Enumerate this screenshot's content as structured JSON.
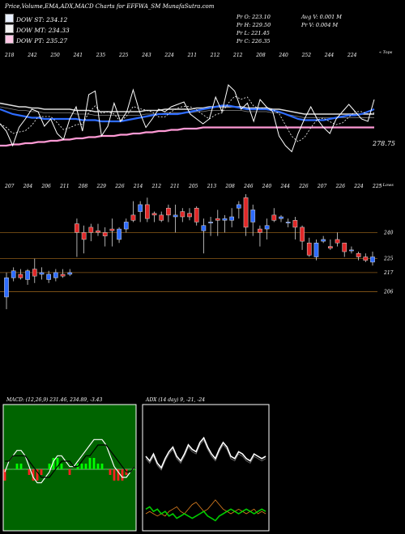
{
  "header": {
    "title": "Price,Volume,EMA,ADX,MACD Charts for EFFWA_SM MunafaSutra.com"
  },
  "legend": [
    {
      "label": "DOW ST: 234.12",
      "color": "#e8f0ff"
    },
    {
      "label": "DOW MT: 234.33",
      "color": "#f2f2f2"
    },
    {
      "label": "DOW PT: 235.27",
      "color": "#ffc8e6"
    }
  ],
  "stats": {
    "pr_o": "Pr O: 223.10",
    "pr_h": "Pr H: 229.50",
    "pr_l": "Pr L: 221.45",
    "pr_c": "Pr C: 226.35",
    "avg_v": "Avg V: 0.001 M",
    "pr_v": "Pr V: 0.004 M"
  },
  "chart_data": [
    {
      "type": "line",
      "name": "ema-panel",
      "top_ticks": [
        "218",
        "242",
        "250",
        "241",
        "235",
        "225",
        "243",
        "224",
        "211",
        "212",
        "212",
        "208",
        "240",
        "252",
        "244",
        "224"
      ],
      "corner_label": "« Tops",
      "last_price": "278.75",
      "series": [
        {
          "name": "price",
          "color": "#ffffff",
          "values": [
            258,
            252,
            240,
            255,
            262,
            270,
            268,
            256,
            262,
            250,
            245,
            262,
            272,
            252,
            282,
            285,
            248,
            256,
            275,
            260,
            268,
            286,
            268,
            255,
            262,
            270,
            268,
            272,
            274,
            276,
            266,
            262,
            258,
            262,
            280,
            268,
            290,
            285,
            270,
            275,
            260,
            278,
            272,
            268,
            248,
            240,
            235,
            250,
            262,
            272,
            262,
            255,
            250,
            262,
            268,
            274,
            268,
            262,
            260,
            278
          ]
        },
        {
          "name": "ema-short",
          "color": "#2e6cff",
          "values": [
            270,
            268,
            266,
            265,
            264,
            263,
            263,
            262,
            262,
            262,
            262,
            262,
            262,
            261,
            261,
            261,
            260,
            260,
            260,
            260,
            261,
            262,
            263,
            264,
            265,
            266,
            266,
            266,
            266,
            267,
            268,
            269,
            270,
            271,
            272,
            273,
            273,
            272,
            271,
            270,
            270,
            270,
            270,
            269,
            268,
            266,
            264,
            262,
            261,
            261,
            261,
            261,
            262,
            263,
            264,
            265,
            265,
            266,
            268,
            270
          ]
        },
        {
          "name": "ema-mid",
          "color": "#bbbbbb",
          "values": [
            275,
            274,
            273,
            272,
            272,
            271,
            271,
            270,
            270,
            270,
            270,
            270,
            269,
            269,
            269,
            268,
            268,
            268,
            268,
            268,
            268,
            268,
            268,
            269,
            269,
            269,
            270,
            270,
            270,
            270,
            270,
            271,
            271,
            272,
            272,
            272,
            272,
            272,
            272,
            271,
            271,
            271,
            271,
            270,
            270,
            269,
            268,
            267,
            266,
            266,
            266,
            266,
            266,
            266,
            266,
            266,
            266,
            266,
            266,
            266
          ]
        },
        {
          "name": "ema-long",
          "color": "#ff9ad5",
          "values": [
            240,
            240,
            241,
            241,
            242,
            242,
            243,
            243,
            244,
            244,
            245,
            245,
            246,
            246,
            247,
            247,
            248,
            248,
            248,
            249,
            249,
            250,
            250,
            251,
            251,
            252,
            252,
            253,
            253,
            254,
            254,
            254,
            255,
            255,
            255,
            255,
            255,
            255,
            255,
            255,
            255,
            255,
            255,
            255,
            255,
            255,
            255,
            255,
            255,
            255,
            255,
            255,
            255,
            255,
            255,
            255,
            255,
            255,
            255,
            255
          ]
        }
      ]
    },
    {
      "type": "candlestick",
      "name": "price-panel",
      "bottom_ticks": [
        "207",
        "204",
        "206",
        "211",
        "208",
        "229",
        "226",
        "214",
        "212",
        "211",
        "205",
        "213",
        "208",
        "246",
        "240",
        "244",
        "226",
        "207",
        "226",
        "224",
        "225"
      ],
      "corner_label": "« Lows",
      "levels": [
        "240",
        "225",
        "217",
        "206"
      ],
      "candles": [
        {
          "o": 203,
          "h": 217,
          "l": 196,
          "c": 214
        },
        {
          "o": 214,
          "h": 220,
          "l": 212,
          "c": 218
        },
        {
          "o": 216,
          "h": 219,
          "l": 213,
          "c": 214
        },
        {
          "o": 213,
          "h": 219,
          "l": 210,
          "c": 218
        },
        {
          "o": 219,
          "h": 225,
          "l": 211,
          "c": 215
        },
        {
          "o": 216,
          "h": 220,
          "l": 213,
          "c": 217
        },
        {
          "o": 213,
          "h": 218,
          "l": 211,
          "c": 216
        },
        {
          "o": 214,
          "h": 219,
          "l": 212,
          "c": 217
        },
        {
          "o": 216,
          "h": 219,
          "l": 214,
          "c": 215
        },
        {
          "o": 216,
          "h": 219,
          "l": 215,
          "c": 217
        },
        {
          "o": 245,
          "h": 248,
          "l": 226,
          "c": 240
        },
        {
          "o": 240,
          "h": 244,
          "l": 228,
          "c": 236
        },
        {
          "o": 243,
          "h": 245,
          "l": 235,
          "c": 240
        },
        {
          "o": 241,
          "h": 245,
          "l": 238,
          "c": 240
        },
        {
          "o": 240,
          "h": 243,
          "l": 232,
          "c": 238
        },
        {
          "o": 242,
          "h": 248,
          "l": 232,
          "c": 241
        },
        {
          "o": 236,
          "h": 243,
          "l": 234,
          "c": 242
        },
        {
          "o": 242,
          "h": 248,
          "l": 240,
          "c": 246
        },
        {
          "o": 250,
          "h": 258,
          "l": 246,
          "c": 247
        },
        {
          "o": 252,
          "h": 258,
          "l": 246,
          "c": 256
        },
        {
          "o": 256,
          "h": 260,
          "l": 246,
          "c": 248
        },
        {
          "o": 251,
          "h": 252,
          "l": 246,
          "c": 250
        },
        {
          "o": 250,
          "h": 252,
          "l": 246,
          "c": 247
        },
        {
          "o": 254,
          "h": 256,
          "l": 246,
          "c": 250
        },
        {
          "o": 249,
          "h": 256,
          "l": 240,
          "c": 250
        },
        {
          "o": 252,
          "h": 254,
          "l": 246,
          "c": 249
        },
        {
          "o": 251,
          "h": 254,
          "l": 247,
          "c": 249
        },
        {
          "o": 254,
          "h": 255,
          "l": 244,
          "c": 246
        },
        {
          "o": 241,
          "h": 248,
          "l": 228,
          "c": 244
        },
        {
          "o": 246,
          "h": 249,
          "l": 238,
          "c": 246
        },
        {
          "o": 248,
          "h": 253,
          "l": 238,
          "c": 247
        },
        {
          "o": 247,
          "h": 250,
          "l": 240,
          "c": 248
        },
        {
          "o": 247,
          "h": 254,
          "l": 243,
          "c": 249
        },
        {
          "o": 254,
          "h": 258,
          "l": 248,
          "c": 256
        },
        {
          "o": 260,
          "h": 262,
          "l": 238,
          "c": 243
        },
        {
          "o": 246,
          "h": 256,
          "l": 238,
          "c": 253
        },
        {
          "o": 242,
          "h": 244,
          "l": 232,
          "c": 240
        },
        {
          "o": 242,
          "h": 248,
          "l": 236,
          "c": 244
        },
        {
          "o": 250,
          "h": 254,
          "l": 246,
          "c": 247
        },
        {
          "o": 248,
          "h": 250,
          "l": 246,
          "c": 249
        },
        {
          "o": 246,
          "h": 248,
          "l": 243,
          "c": 246
        },
        {
          "o": 247,
          "h": 249,
          "l": 236,
          "c": 243
        },
        {
          "o": 243,
          "h": 244,
          "l": 230,
          "c": 235
        },
        {
          "o": 234,
          "h": 237,
          "l": 226,
          "c": 227
        },
        {
          "o": 226,
          "h": 236,
          "l": 224,
          "c": 234
        },
        {
          "o": 235,
          "h": 238,
          "l": 234,
          "c": 236
        },
        {
          "o": 232,
          "h": 236,
          "l": 230,
          "c": 231
        },
        {
          "o": 236,
          "h": 240,
          "l": 232,
          "c": 234
        },
        {
          "o": 234,
          "h": 234,
          "l": 226,
          "c": 229
        },
        {
          "o": 230,
          "h": 232,
          "l": 228,
          "c": 230
        },
        {
          "o": 228,
          "h": 229,
          "l": 224,
          "c": 226
        },
        {
          "o": 226,
          "h": 228,
          "l": 223,
          "c": 224
        },
        {
          "o": 223,
          "h": 229,
          "l": 221,
          "c": 226
        }
      ]
    },
    {
      "type": "bar",
      "name": "macd-panel",
      "title": "MACD: (12,26,9) 231.46, 234.89, -3.43",
      "macd": [
        230,
        232,
        233,
        234,
        234,
        233,
        231,
        229,
        228,
        228,
        229,
        230,
        232,
        233,
        233,
        232,
        231,
        231,
        232,
        233,
        234,
        235,
        236,
        236,
        236,
        235,
        233,
        231,
        230,
        229,
        229,
        230,
        231
      ],
      "signal": [
        232,
        232,
        233,
        233,
        233,
        233,
        232,
        231,
        230,
        229,
        229,
        229,
        230,
        231,
        232,
        232,
        232,
        231,
        231,
        232,
        233,
        233,
        234,
        235,
        235,
        235,
        234,
        233,
        232,
        231,
        230,
        230,
        231
      ],
      "histogram": [
        -2,
        0,
        0,
        1,
        1,
        0,
        -1,
        -2,
        -2,
        -1,
        0,
        1,
        2,
        2,
        1,
        0,
        -1,
        0,
        1,
        1,
        1,
        2,
        2,
        1,
        1,
        0,
        -1,
        -2,
        -2,
        -2,
        -1,
        0,
        0
      ]
    },
    {
      "type": "line",
      "name": "adx-panel",
      "title": "ADX (14 day) 9, -21, -24",
      "series": [
        {
          "name": "white",
          "color": "#ffffff",
          "values": [
            62,
            58,
            64,
            56,
            52,
            60,
            66,
            70,
            62,
            58,
            64,
            72,
            68,
            66,
            74,
            78,
            70,
            64,
            60,
            68,
            74,
            70,
            62,
            60,
            66,
            64,
            60,
            58,
            64,
            62,
            60,
            62
          ]
        },
        {
          "name": "orange",
          "color": "#e08020",
          "values": [
            12,
            14,
            12,
            10,
            12,
            10,
            14,
            16,
            18,
            14,
            12,
            16,
            20,
            22,
            18,
            14,
            16,
            20,
            24,
            20,
            16,
            14,
            12,
            14,
            16,
            14,
            12,
            14,
            16,
            12,
            14,
            12
          ]
        },
        {
          "name": "green",
          "color": "#00cc00",
          "values": [
            16,
            18,
            14,
            16,
            12,
            14,
            10,
            12,
            8,
            10,
            12,
            10,
            8,
            10,
            12,
            14,
            10,
            8,
            6,
            10,
            12,
            14,
            16,
            14,
            12,
            14,
            16,
            14,
            12,
            14,
            16,
            14
          ]
        }
      ]
    }
  ]
}
